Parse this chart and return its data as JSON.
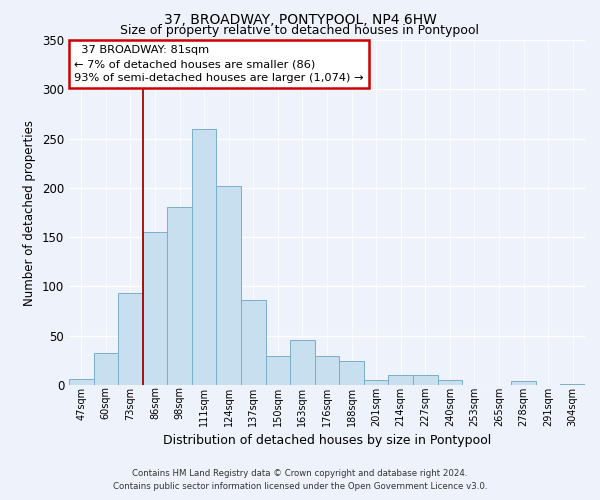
{
  "title": "37, BROADWAY, PONTYPOOL, NP4 6HW",
  "subtitle": "Size of property relative to detached houses in Pontypool",
  "xlabel": "Distribution of detached houses by size in Pontypool",
  "ylabel": "Number of detached properties",
  "footer_line1": "Contains HM Land Registry data © Crown copyright and database right 2024.",
  "footer_line2": "Contains public sector information licensed under the Open Government Licence v3.0.",
  "bar_labels": [
    "47sqm",
    "60sqm",
    "73sqm",
    "86sqm",
    "98sqm",
    "111sqm",
    "124sqm",
    "137sqm",
    "150sqm",
    "163sqm",
    "176sqm",
    "188sqm",
    "201sqm",
    "214sqm",
    "227sqm",
    "240sqm",
    "253sqm",
    "265sqm",
    "278sqm",
    "291sqm",
    "304sqm"
  ],
  "bar_values": [
    6,
    32,
    93,
    155,
    181,
    260,
    202,
    86,
    29,
    46,
    29,
    24,
    5,
    10,
    10,
    5,
    0,
    0,
    4,
    0,
    1
  ],
  "bar_color": "#c8dff0",
  "bar_edge_color": "#7aaec8",
  "ylim": [
    0,
    350
  ],
  "yticks": [
    0,
    50,
    100,
    150,
    200,
    250,
    300,
    350
  ],
  "property_line_color": "#aa0000",
  "annotation_title": "37 BROADWAY: 81sqm",
  "annotation_line1": "← 7% of detached houses are smaller (86)",
  "annotation_line2": "93% of semi-detached houses are larger (1,074) →",
  "annotation_box_facecolor": "#ffffff",
  "annotation_box_edgecolor": "#cc0000",
  "background_color": "#eef2fa",
  "grid_color": "#ffffff",
  "title_fontsize": 10,
  "subtitle_fontsize": 9
}
